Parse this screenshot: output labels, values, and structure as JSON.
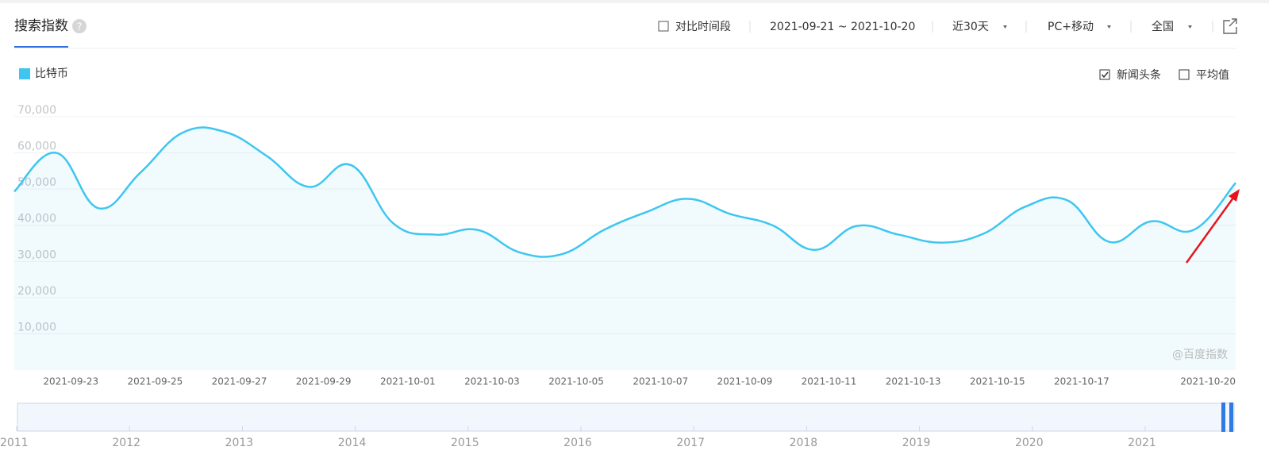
{
  "header": {
    "tab": "搜索指数",
    "help": "?",
    "compare": "对比时间段",
    "date_range": "2021-09-21 ~ 2021-10-20",
    "period": "近30天",
    "device": "PC+移动",
    "region": "全国",
    "news": "新闻头条",
    "average": "平均值",
    "watermark": "@百度指数"
  },
  "slider": {
    "years": [
      "2011",
      "2012",
      "2013",
      "2014",
      "2015",
      "2016",
      "2017",
      "2018",
      "2019",
      "2020",
      "2021"
    ]
  },
  "chart_data": {
    "type": "line",
    "categories": [
      null,
      null,
      "2021-09-23",
      null,
      "2021-09-25",
      null,
      "2021-09-27",
      null,
      "2021-09-29",
      null,
      "2021-10-01",
      null,
      "2021-10-03",
      null,
      "2021-10-05",
      null,
      "2021-10-07",
      null,
      "2021-10-09",
      null,
      "2021-10-11",
      null,
      "2021-10-13",
      null,
      "2021-10-15",
      null,
      "2021-10-17",
      null,
      null,
      "2021-10-20"
    ],
    "series": [
      {
        "name": "比特币",
        "color": "#3ec6f0",
        "values": [
          49300,
          60000,
          44700,
          54600,
          65600,
          65800,
          59100,
          50600,
          56600,
          40500,
          37400,
          38700,
          32500,
          32000,
          38700,
          43600,
          47300,
          43100,
          40000,
          33200,
          39800,
          37400,
          35200,
          37600,
          45100,
          46900,
          35400,
          41100,
          38700,
          51700
        ]
      }
    ],
    "ylim": [
      0,
      70000
    ],
    "yticks": [
      {
        "value": 10000,
        "label": "10,000"
      },
      {
        "value": 20000,
        "label": "20,000"
      },
      {
        "value": 30000,
        "label": "30,000"
      },
      {
        "value": 40000,
        "label": "40,000"
      },
      {
        "value": 50000,
        "label": "50,000"
      },
      {
        "value": 60000,
        "label": "60,000"
      },
      {
        "value": 70000,
        "label": "70,000"
      }
    ],
    "grid": true
  }
}
